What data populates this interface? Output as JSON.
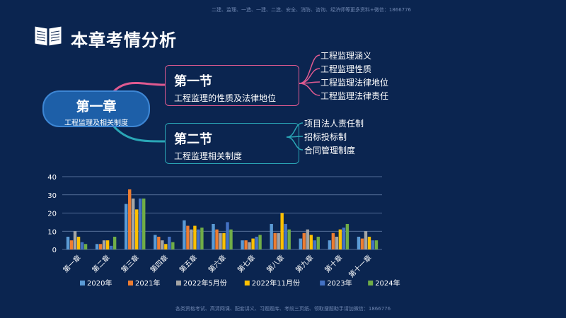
{
  "watermark": {
    "top": "二建、监理、一造、一建、二造、安全、消防、咨询、经济师等更多资料+微信：1866776",
    "bottom": "各类资格考试、高清网课、配套讲义、习题题库、考前三页纸、领取搜题助手请加微信：1866776"
  },
  "header": {
    "title": "本章考情分析",
    "icon": "book-icon"
  },
  "mindmap": {
    "chapter": {
      "title": "第一章",
      "subtitle": "工程监理及相关制度"
    },
    "sections": [
      {
        "title": "第一节",
        "subtitle": "工程监理的性质及法律地位",
        "color": "#e05a90",
        "leaves": [
          "工程监理涵义",
          "工程监理性质",
          "工程监理法律地位",
          "工程监理法律责任"
        ]
      },
      {
        "title": "第二节",
        "subtitle": "工程监理相关制度",
        "color": "#2aa6b6",
        "leaves": [
          "项目法人责任制",
          "招标投标制",
          "合同管理制度"
        ]
      }
    ]
  },
  "chart_data": {
    "type": "bar",
    "categories": [
      "第一章",
      "第二章",
      "第三章",
      "第四章",
      "第五章",
      "第六章",
      "第七章",
      "第八章",
      "第九章",
      "第十章",
      "第十一章"
    ],
    "ylim": [
      0,
      40
    ],
    "yticks": [
      0,
      10,
      20,
      30,
      40
    ],
    "grid": true,
    "legend_position": "bottom",
    "series": [
      {
        "name": "2020年",
        "color": "#5b9bd5",
        "values": [
          7,
          3,
          25,
          8,
          16,
          14,
          5,
          14,
          6,
          5,
          7
        ]
      },
      {
        "name": "2021年",
        "color": "#ed7d31",
        "values": [
          5,
          3,
          33,
          7,
          13,
          11,
          5,
          9,
          9,
          9,
          6
        ]
      },
      {
        "name": "2022年5月份",
        "color": "#a5a5a5",
        "values": [
          10,
          5,
          28,
          5,
          11,
          9,
          4,
          9,
          11,
          7,
          10
        ]
      },
      {
        "name": "2022年11月份",
        "color": "#ffc000",
        "values": [
          7,
          5,
          22,
          3,
          13,
          9,
          6,
          20,
          8,
          11,
          7
        ]
      },
      {
        "name": "2023年",
        "color": "#4472c4",
        "values": [
          4,
          2,
          28,
          7,
          11,
          15,
          7,
          14,
          5,
          12,
          5
        ]
      },
      {
        "name": "2024年",
        "color": "#70ad47",
        "values": [
          3,
          7,
          28,
          4,
          12,
          11,
          8,
          11,
          7,
          14,
          5
        ]
      }
    ]
  }
}
